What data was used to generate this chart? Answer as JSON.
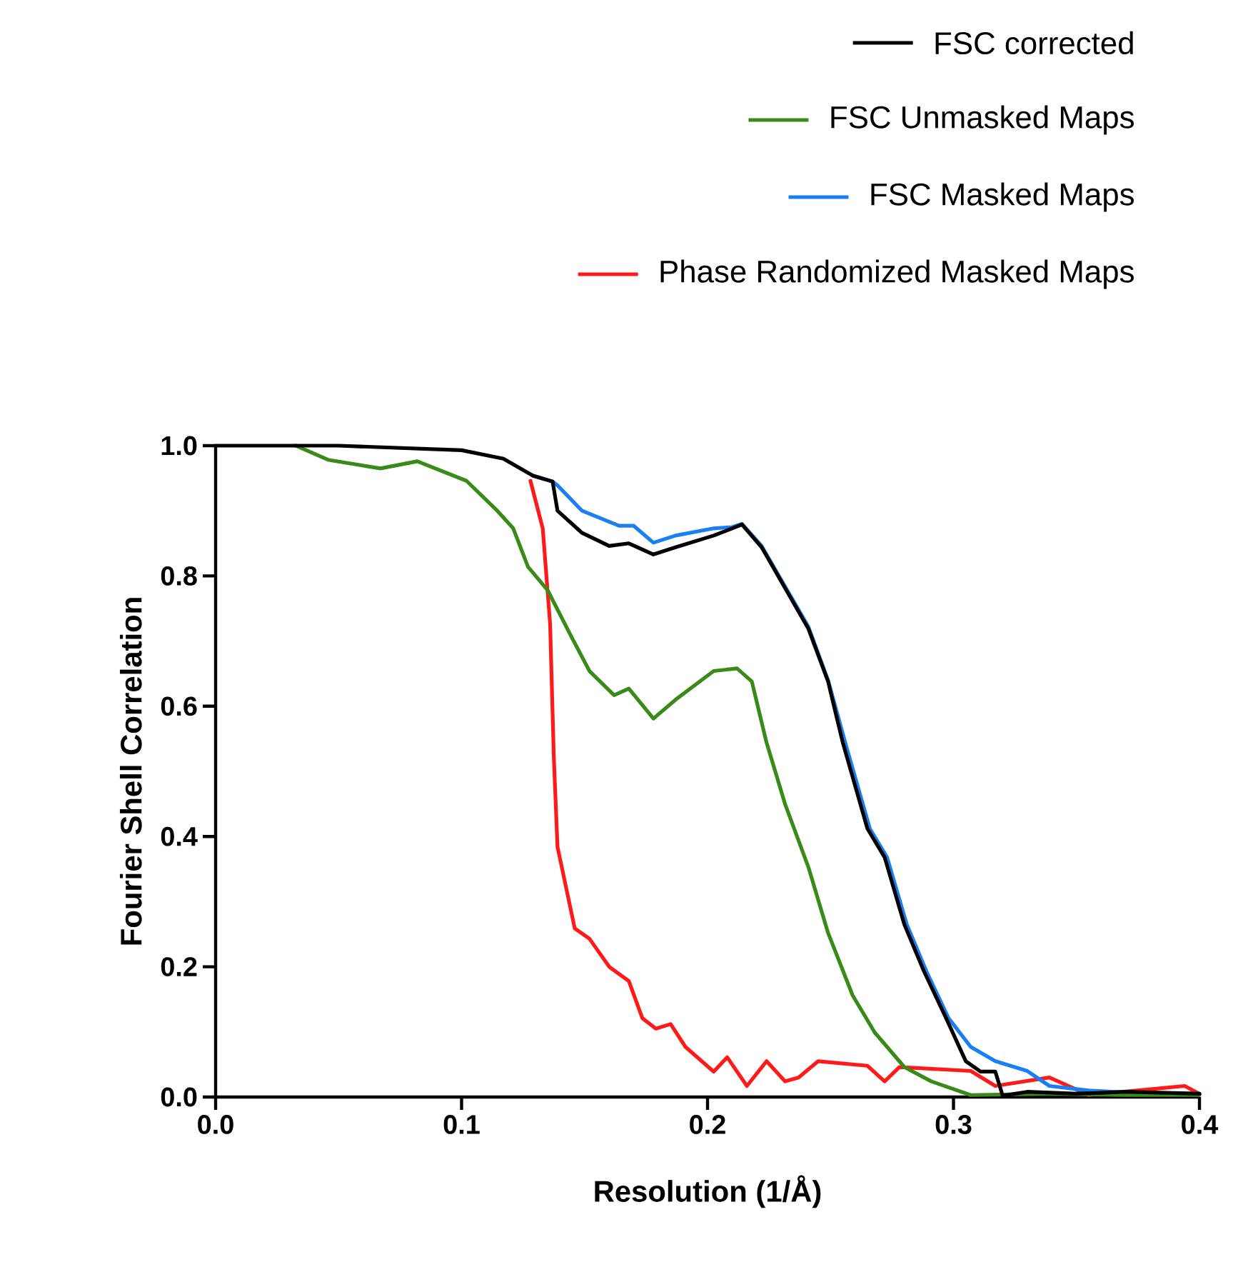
{
  "chart_data": {
    "type": "line",
    "xlabel": "Resolution (1/Å)",
    "ylabel": "Fourier Shell Correlation",
    "xlim": [
      0,
      0.4
    ],
    "ylim": [
      0,
      1.0
    ],
    "xticks": [
      {
        "value": 0,
        "label": "0.0"
      },
      {
        "value": 0.1,
        "label": "0.1"
      },
      {
        "value": 0.2,
        "label": "0.2"
      },
      {
        "value": 0.3,
        "label": "0.3"
      },
      {
        "value": 0.4,
        "label": "0.4"
      }
    ],
    "yticks": [
      {
        "value": 0,
        "label": "0.0"
      },
      {
        "value": 0.2,
        "label": "0.2"
      },
      {
        "value": 0.4,
        "label": "0.4"
      },
      {
        "value": 0.6,
        "label": "0.6"
      },
      {
        "value": 0.8,
        "label": "0.8"
      },
      {
        "value": 1.0,
        "label": "1.0"
      }
    ],
    "grid": false,
    "legend": "top",
    "series": [
      {
        "name": "FSC corrected",
        "color": "#000000",
        "x": [
          0,
          0.05,
          0.1,
          0.117,
          0.129,
          0.137,
          0.139,
          0.149,
          0.16,
          0.168,
          0.178,
          0.187,
          0.2025,
          0.21,
          0.214,
          0.222,
          0.241,
          0.249,
          0.255,
          0.265,
          0.272,
          0.28,
          0.288,
          0.297,
          0.305,
          0.311,
          0.317,
          0.32,
          0.33,
          0.35,
          0.37,
          0.4
        ],
        "values": [
          1.0,
          1.0,
          0.993,
          0.98,
          0.954,
          0.945,
          0.9,
          0.866,
          0.846,
          0.85,
          0.833,
          0.844,
          0.862,
          0.873,
          0.879,
          0.844,
          0.719,
          0.638,
          0.544,
          0.412,
          0.368,
          0.265,
          0.193,
          0.121,
          0.055,
          0.039,
          0.039,
          0.002,
          0.008,
          0.005,
          0.008,
          0.005
        ]
      },
      {
        "name": "FSC Unmasked Maps",
        "color": "#3a8a1a",
        "x": [
          0.0325,
          0.046,
          0.067,
          0.082,
          0.102,
          0.114,
          0.121,
          0.127,
          0.135,
          0.145,
          0.152,
          0.162,
          0.168,
          0.178,
          0.187,
          0.2025,
          0.212,
          0.218,
          0.224,
          0.2315,
          0.241,
          0.249,
          0.259,
          0.268,
          0.28,
          0.291,
          0.307,
          0.34,
          0.37,
          0.4
        ],
        "values": [
          1.0,
          0.978,
          0.965,
          0.976,
          0.946,
          0.902,
          0.873,
          0.814,
          0.778,
          0.704,
          0.654,
          0.617,
          0.627,
          0.581,
          0.61,
          0.654,
          0.658,
          0.638,
          0.544,
          0.45,
          0.353,
          0.252,
          0.156,
          0.099,
          0.046,
          0.024,
          0.003,
          0.005,
          0.003,
          0.003
        ]
      },
      {
        "name": "FSC Masked Maps",
        "color": "#1a7ff0",
        "x": [
          0.129,
          0.137,
          0.139,
          0.149,
          0.164,
          0.17,
          0.178,
          0.187,
          0.2025,
          0.21,
          0.214,
          0.222,
          0.241,
          0.249,
          0.256,
          0.266,
          0.273,
          0.281,
          0.289,
          0.298,
          0.307,
          0.317,
          0.33,
          0.339,
          0.355,
          0.38,
          0.4
        ],
        "values": [
          0.954,
          0.945,
          0.939,
          0.9,
          0.877,
          0.877,
          0.851,
          0.862,
          0.873,
          0.875,
          0.88,
          0.846,
          0.722,
          0.64,
          0.544,
          0.412,
          0.368,
          0.265,
          0.193,
          0.121,
          0.077,
          0.055,
          0.04,
          0.017,
          0.01,
          0.005,
          0.005
        ]
      },
      {
        "name": "Phase Randomized Masked Maps",
        "color": "#ff1a1a",
        "x": [
          0.128,
          0.133,
          0.136,
          0.1375,
          0.139,
          0.146,
          0.152,
          0.16,
          0.168,
          0.1735,
          0.179,
          0.185,
          0.191,
          0.2025,
          0.208,
          0.216,
          0.224,
          0.2315,
          0.237,
          0.245,
          0.265,
          0.272,
          0.278,
          0.307,
          0.317,
          0.339,
          0.355,
          0.394,
          0.4
        ],
        "values": [
          0.946,
          0.873,
          0.726,
          0.522,
          0.384,
          0.259,
          0.243,
          0.2,
          0.178,
          0.121,
          0.105,
          0.112,
          0.077,
          0.039,
          0.061,
          0.017,
          0.055,
          0.024,
          0.03,
          0.055,
          0.048,
          0.024,
          0.046,
          0.04,
          0.017,
          0.03,
          0.003,
          0.017,
          0.005
        ]
      }
    ]
  }
}
